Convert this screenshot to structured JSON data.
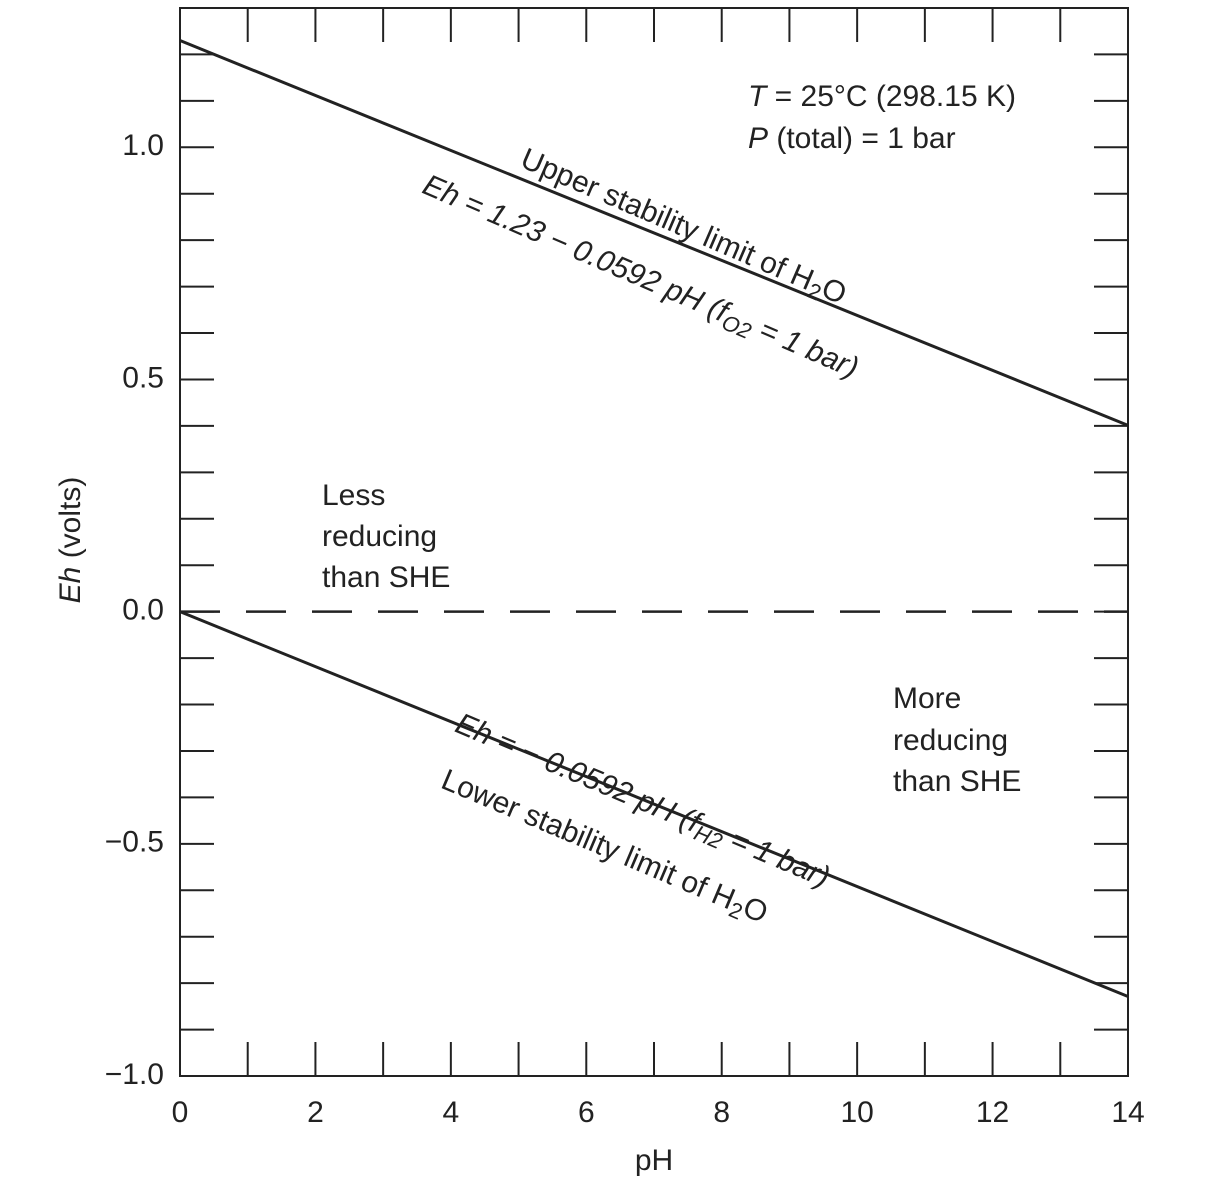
{
  "chart_data": {
    "type": "line",
    "xlabel": "pH",
    "ylabel_parts": [
      "Eh",
      " (volts)"
    ],
    "xlim": [
      0,
      14
    ],
    "ylim": [
      -1.0,
      1.3
    ],
    "xticks": [
      0,
      2,
      4,
      6,
      8,
      10,
      12,
      14
    ],
    "xminorticks": [
      1,
      3,
      5,
      7,
      9,
      11,
      13
    ],
    "yticks": [
      {
        "value": -1.0,
        "label": "−1.0"
      },
      {
        "value": -0.5,
        "label": "−0.5"
      },
      {
        "value": 0,
        "label": "0.0"
      },
      {
        "value": 0.5,
        "label": "0.5"
      },
      {
        "value": 1.0,
        "label": "1.0"
      }
    ],
    "yminorticks": [
      -0.9,
      -0.8,
      -0.7,
      -0.6,
      -0.4,
      -0.3,
      -0.2,
      -0.1,
      0.1,
      0.2,
      0.3,
      0.4,
      0.6,
      0.7,
      0.8,
      0.9,
      1.1,
      1.2
    ],
    "lines": [
      {
        "x": [
          0,
          14
        ],
        "values": [
          1.23,
          0.4012
        ],
        "color": "#222"
      },
      {
        "x": [
          0,
          14
        ],
        "values": [
          0,
          -0.8288
        ],
        "color": "#222"
      }
    ],
    "hlines": [
      {
        "value": 0,
        "dashed": true,
        "color": "#222"
      }
    ],
    "annotations": [
      {
        "parts": [
          "T",
          " = 25°C (298.15 K)"
        ]
      },
      {
        "parts": [
          "P",
          " (total) = 1 bar"
        ]
      },
      {
        "parts": [
          "Upper stability limit of H",
          "2",
          "O"
        ]
      },
      {
        "parts": [
          "Eh = 1.23 − 0.0592 pH (f",
          "O2",
          " = 1 bar)"
        ]
      },
      {
        "parts": [
          "Less"
        ]
      },
      {
        "parts": [
          "reducing"
        ]
      },
      {
        "parts": [
          "than SHE"
        ]
      },
      {
        "parts": [
          "More"
        ]
      },
      {
        "parts": [
          "reducing"
        ]
      },
      {
        "parts": [
          "than SHE"
        ]
      },
      {
        "parts": [
          "Eh = − 0.0592 pH (f",
          "H2",
          " = 1 bar)"
        ]
      },
      {
        "parts": [
          "Lower stability limit of H",
          "2",
          "O"
        ]
      }
    ]
  }
}
